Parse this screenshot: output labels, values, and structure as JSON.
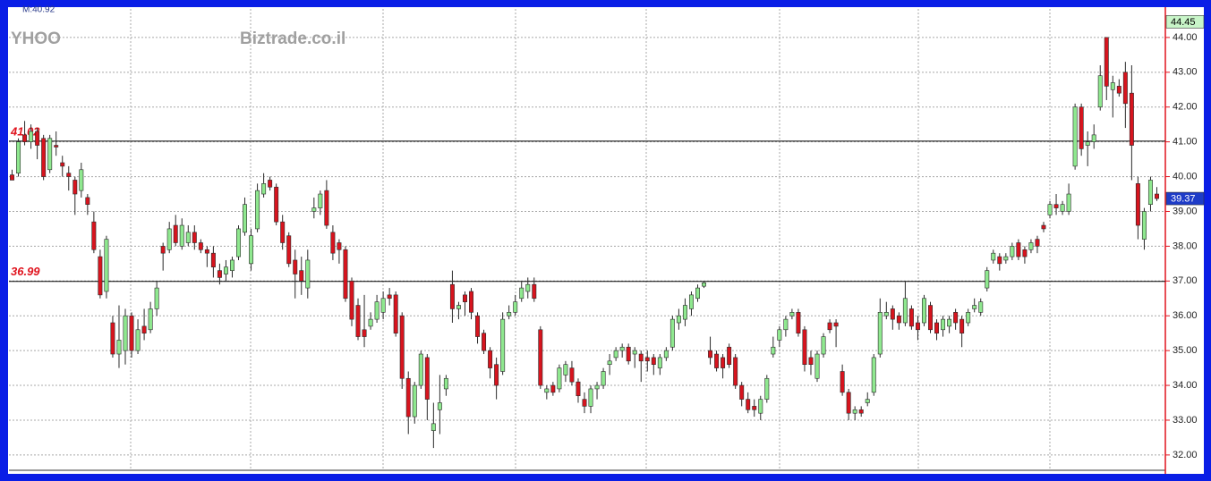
{
  "chart_data": {
    "type": "candlestick",
    "symbol": "YHOO",
    "watermark": "Biztrade.co.il",
    "annotation": "M:40.92",
    "up_color": "#8fe88f",
    "down_color": "#d7141e",
    "wick_color": "#2a2a2a",
    "open": [
      40.05,
      40.1,
      41.2,
      41.0,
      41.3,
      41.1,
      40.2,
      40.9,
      40.4,
      40.1,
      39.9,
      39.6,
      39.4,
      38.7,
      37.7,
      36.7,
      35.8,
      34.9,
      35.0,
      36.0,
      35.0,
      35.7,
      35.6,
      36.2,
      38.0,
      37.9,
      38.6,
      38.0,
      38.1,
      38.4,
      38.1,
      37.9,
      37.8,
      37.3,
      37.2,
      37.3,
      37.7,
      38.4,
      37.5,
      38.5,
      39.5,
      39.9,
      39.7,
      38.7,
      38.3,
      37.6,
      37.3,
      36.8,
      39.0,
      39.1,
      39.6,
      38.4,
      38.1,
      37.9,
      37.0,
      36.3,
      35.6,
      35.7,
      35.9,
      36.1,
      36.6,
      36.6,
      36.0,
      34.2,
      33.1,
      34.0,
      34.8,
      32.7,
      33.3,
      33.9,
      36.9,
      36.2,
      36.6,
      36.7,
      36.0,
      35.5,
      35.0,
      34.6,
      34.4,
      36.0,
      36.1,
      36.5,
      36.7,
      36.9,
      35.6,
      33.8,
      34.0,
      33.9,
      34.3,
      34.5,
      34.1,
      33.6,
      33.4,
      33.9,
      34.0,
      34.6,
      34.8,
      35.0,
      35.1,
      34.9,
      34.9,
      34.8,
      34.8,
      34.5,
      34.8,
      35.1,
      35.8,
      35.9,
      36.2,
      36.5,
      36.85,
      35.0,
      34.9,
      34.8,
      35.1,
      34.8,
      34.0,
      33.6,
      33.4,
      33.2,
      33.6,
      34.9,
      35.3,
      35.6,
      36.0,
      36.1,
      35.6,
      34.8,
      34.2,
      34.9,
      35.8,
      35.8,
      34.4,
      33.8,
      33.2,
      33.3,
      33.5,
      33.8,
      34.9,
      36.0,
      36.2,
      36.0,
      35.8,
      36.2,
      35.8,
      35.8,
      36.3,
      35.8,
      35.6,
      35.7,
      36.1,
      35.9,
      35.8,
      36.2,
      36.1,
      36.8,
      37.6,
      37.7,
      37.6,
      37.7,
      38.1,
      37.9,
      37.9,
      38.2,
      38.6,
      38.9,
      39.2,
      39.0,
      39.0,
      40.3,
      42.0,
      40.9,
      41.0,
      42.0,
      44.0,
      42.5,
      42.6,
      43.0,
      42.4,
      39.8,
      38.2,
      39.2,
      39.5
    ],
    "high": [
      40.2,
      41.1,
      41.6,
      41.5,
      41.4,
      41.2,
      41.2,
      41.3,
      40.6,
      40.3,
      40.0,
      40.4,
      39.5,
      39.0,
      37.9,
      38.3,
      36.0,
      36.3,
      36.2,
      36.1,
      35.9,
      36.2,
      36.4,
      37.0,
      38.1,
      38.7,
      38.9,
      38.8,
      38.6,
      38.6,
      38.2,
      38.0,
      38.0,
      37.5,
      37.6,
      37.7,
      38.6,
      39.4,
      38.5,
      39.8,
      40.1,
      40.0,
      39.8,
      38.9,
      38.4,
      37.9,
      37.7,
      37.9,
      39.4,
      39.6,
      39.9,
      38.6,
      38.2,
      38.0,
      37.1,
      36.5,
      36.6,
      36.1,
      36.6,
      36.7,
      36.8,
      36.7,
      36.1,
      34.4,
      34.1,
      35.0,
      34.9,
      33.5,
      34.3,
      34.3,
      37.3,
      36.4,
      36.7,
      36.8,
      36.1,
      35.6,
      35.1,
      34.8,
      36.1,
      36.3,
      36.6,
      37.0,
      37.1,
      37.1,
      35.7,
      34.0,
      34.1,
      34.6,
      34.7,
      34.7,
      34.2,
      33.8,
      34.0,
      34.1,
      34.5,
      34.9,
      35.1,
      35.2,
      35.2,
      35.1,
      35.0,
      35.0,
      34.9,
      34.9,
      35.1,
      36.0,
      36.2,
      36.5,
      36.7,
      36.9,
      37.0,
      35.4,
      35.0,
      34.9,
      35.2,
      34.9,
      34.1,
      33.8,
      33.6,
      33.7,
      34.3,
      35.4,
      35.7,
      36.0,
      36.2,
      36.2,
      35.7,
      35.0,
      35.0,
      35.5,
      35.9,
      35.9,
      34.6,
      33.9,
      33.4,
      33.4,
      33.8,
      34.9,
      36.5,
      36.4,
      36.3,
      36.1,
      37.0,
      36.3,
      36.0,
      36.6,
      36.4,
      35.9,
      36.0,
      36.0,
      36.2,
      36.0,
      36.2,
      36.5,
      36.5,
      37.4,
      37.9,
      37.8,
      37.8,
      38.1,
      38.2,
      38.0,
      38.2,
      38.3,
      38.7,
      39.3,
      39.5,
      39.3,
      39.8,
      42.1,
      42.1,
      41.3,
      41.5,
      43.2,
      44.0,
      42.9,
      42.8,
      43.3,
      43.2,
      40.0,
      39.1,
      40.0,
      39.7
    ],
    "low": [
      39.9,
      40.0,
      40.9,
      40.8,
      40.5,
      39.9,
      40.1,
      40.6,
      40.0,
      39.6,
      38.9,
      39.4,
      38.9,
      37.8,
      36.5,
      36.5,
      34.8,
      34.5,
      34.6,
      34.8,
      34.9,
      35.3,
      35.5,
      36.0,
      37.3,
      37.8,
      38.0,
      37.9,
      38.0,
      37.9,
      37.8,
      37.4,
      37.1,
      36.9,
      37.0,
      37.1,
      37.6,
      38.3,
      37.3,
      38.4,
      39.4,
      39.6,
      38.6,
      37.9,
      37.4,
      36.5,
      36.6,
      36.5,
      38.8,
      38.9,
      38.5,
      37.6,
      37.5,
      36.4,
      35.7,
      35.3,
      35.1,
      35.6,
      35.8,
      35.9,
      36.3,
      35.4,
      33.9,
      32.6,
      32.9,
      33.9,
      33.0,
      32.2,
      32.6,
      33.7,
      35.8,
      35.9,
      36.0,
      35.9,
      35.2,
      34.9,
      34.2,
      33.6,
      34.3,
      35.9,
      36.0,
      36.4,
      36.5,
      36.4,
      33.9,
      33.6,
      33.7,
      33.8,
      34.1,
      34.0,
      33.5,
      33.2,
      33.2,
      33.6,
      33.9,
      34.3,
      34.7,
      34.8,
      34.6,
      34.5,
      34.1,
      34.4,
      34.3,
      34.3,
      34.7,
      35.0,
      35.6,
      35.7,
      36.0,
      36.4,
      36.8,
      34.6,
      34.4,
      34.2,
      34.5,
      33.9,
      33.4,
      33.2,
      33.1,
      33.0,
      33.5,
      34.8,
      35.1,
      35.4,
      35.9,
      35.4,
      34.4,
      34.3,
      34.1,
      34.8,
      35.5,
      35.1,
      33.7,
      33.0,
      33.0,
      33.1,
      33.4,
      33.7,
      34.8,
      35.9,
      35.6,
      35.6,
      35.7,
      35.6,
      35.3,
      35.7,
      35.5,
      35.3,
      35.4,
      35.5,
      35.6,
      35.1,
      35.7,
      36.1,
      36.0,
      36.7,
      37.5,
      37.3,
      37.5,
      37.6,
      37.6,
      37.5,
      37.8,
      37.8,
      38.4,
      38.8,
      38.9,
      38.9,
      38.9,
      40.2,
      40.6,
      40.3,
      40.8,
      41.9,
      42.2,
      41.7,
      42.3,
      41.4,
      39.9,
      38.2,
      37.9,
      39.0,
      39.3
    ],
    "close": [
      39.9,
      41.0,
      41.0,
      41.3,
      40.9,
      40.0,
      41.1,
      40.85,
      40.3,
      40.0,
      39.5,
      40.2,
      39.2,
      37.9,
      36.6,
      38.2,
      34.9,
      35.3,
      36.0,
      35.0,
      35.6,
      35.5,
      36.2,
      36.8,
      37.8,
      38.5,
      38.1,
      38.6,
      38.4,
      38.1,
      37.9,
      37.8,
      37.4,
      37.1,
      37.4,
      37.6,
      38.5,
      39.2,
      38.3,
      39.6,
      39.8,
      39.7,
      38.7,
      38.1,
      37.5,
      37.2,
      37.0,
      37.6,
      39.1,
      39.5,
      38.6,
      37.8,
      37.9,
      36.5,
      35.9,
      35.4,
      35.4,
      35.9,
      36.4,
      36.5,
      36.5,
      35.5,
      34.2,
      33.1,
      34.0,
      34.9,
      33.6,
      32.9,
      33.5,
      34.2,
      36.2,
      36.3,
      36.4,
      36.1,
      35.4,
      35.0,
      34.5,
      34.0,
      35.9,
      36.1,
      36.4,
      36.8,
      36.9,
      36.5,
      34.0,
      33.9,
      33.8,
      34.5,
      34.6,
      34.1,
      33.7,
      33.4,
      33.9,
      34.0,
      34.4,
      34.7,
      35.0,
      35.1,
      34.7,
      35.0,
      34.7,
      34.7,
      34.6,
      34.8,
      35.0,
      35.9,
      36.0,
      36.3,
      36.6,
      36.8,
      36.95,
      34.8,
      34.5,
      34.5,
      34.6,
      34.0,
      33.6,
      33.3,
      33.3,
      33.6,
      34.2,
      35.1,
      35.6,
      35.9,
      36.1,
      35.5,
      34.6,
      34.6,
      34.9,
      35.4,
      35.6,
      35.7,
      33.8,
      33.2,
      33.3,
      33.2,
      33.6,
      34.8,
      36.1,
      36.1,
      35.9,
      35.8,
      36.5,
      35.7,
      35.6,
      36.5,
      35.6,
      35.5,
      35.9,
      35.9,
      35.8,
      35.5,
      36.1,
      36.3,
      36.4,
      37.3,
      37.8,
      37.5,
      37.7,
      38.0,
      37.7,
      37.7,
      38.1,
      38.0,
      38.5,
      39.2,
      39.1,
      39.2,
      39.5,
      42.0,
      40.8,
      41.0,
      41.2,
      42.9,
      42.6,
      42.7,
      42.4,
      42.1,
      40.9,
      38.6,
      39.0,
      39.9,
      39.37
    ],
    "ylim": [
      31.56,
      44.82
    ],
    "yticks": [
      {
        "value": 32,
        "label": "32.00"
      },
      {
        "value": 33,
        "label": "33.00"
      },
      {
        "value": 34,
        "label": "34.00"
      },
      {
        "value": 35,
        "label": "35.00"
      },
      {
        "value": 36,
        "label": "36.00"
      },
      {
        "value": 37,
        "label": "37.00"
      },
      {
        "value": 38,
        "label": "38.00"
      },
      {
        "value": 39,
        "label": "39.00"
      },
      {
        "value": 40,
        "label": "40.00"
      },
      {
        "value": 41,
        "label": "41.00"
      },
      {
        "value": 42,
        "label": "42.00"
      },
      {
        "value": 43,
        "label": "43.00"
      },
      {
        "value": 44,
        "label": "44.00"
      }
    ],
    "grid": true,
    "reference_lines": [
      {
        "value": 41.02
      },
      {
        "value": 36.99
      }
    ],
    "reference_line_color": "#000000",
    "reference_label_color": "#e0141e",
    "price_tags": [
      {
        "value": 44.45,
        "color": "#c8f5c8",
        "text_color": "#000000"
      },
      {
        "value": 39.37,
        "color": "#1e3cc8",
        "text_color": "#ffffff"
      }
    ]
  }
}
